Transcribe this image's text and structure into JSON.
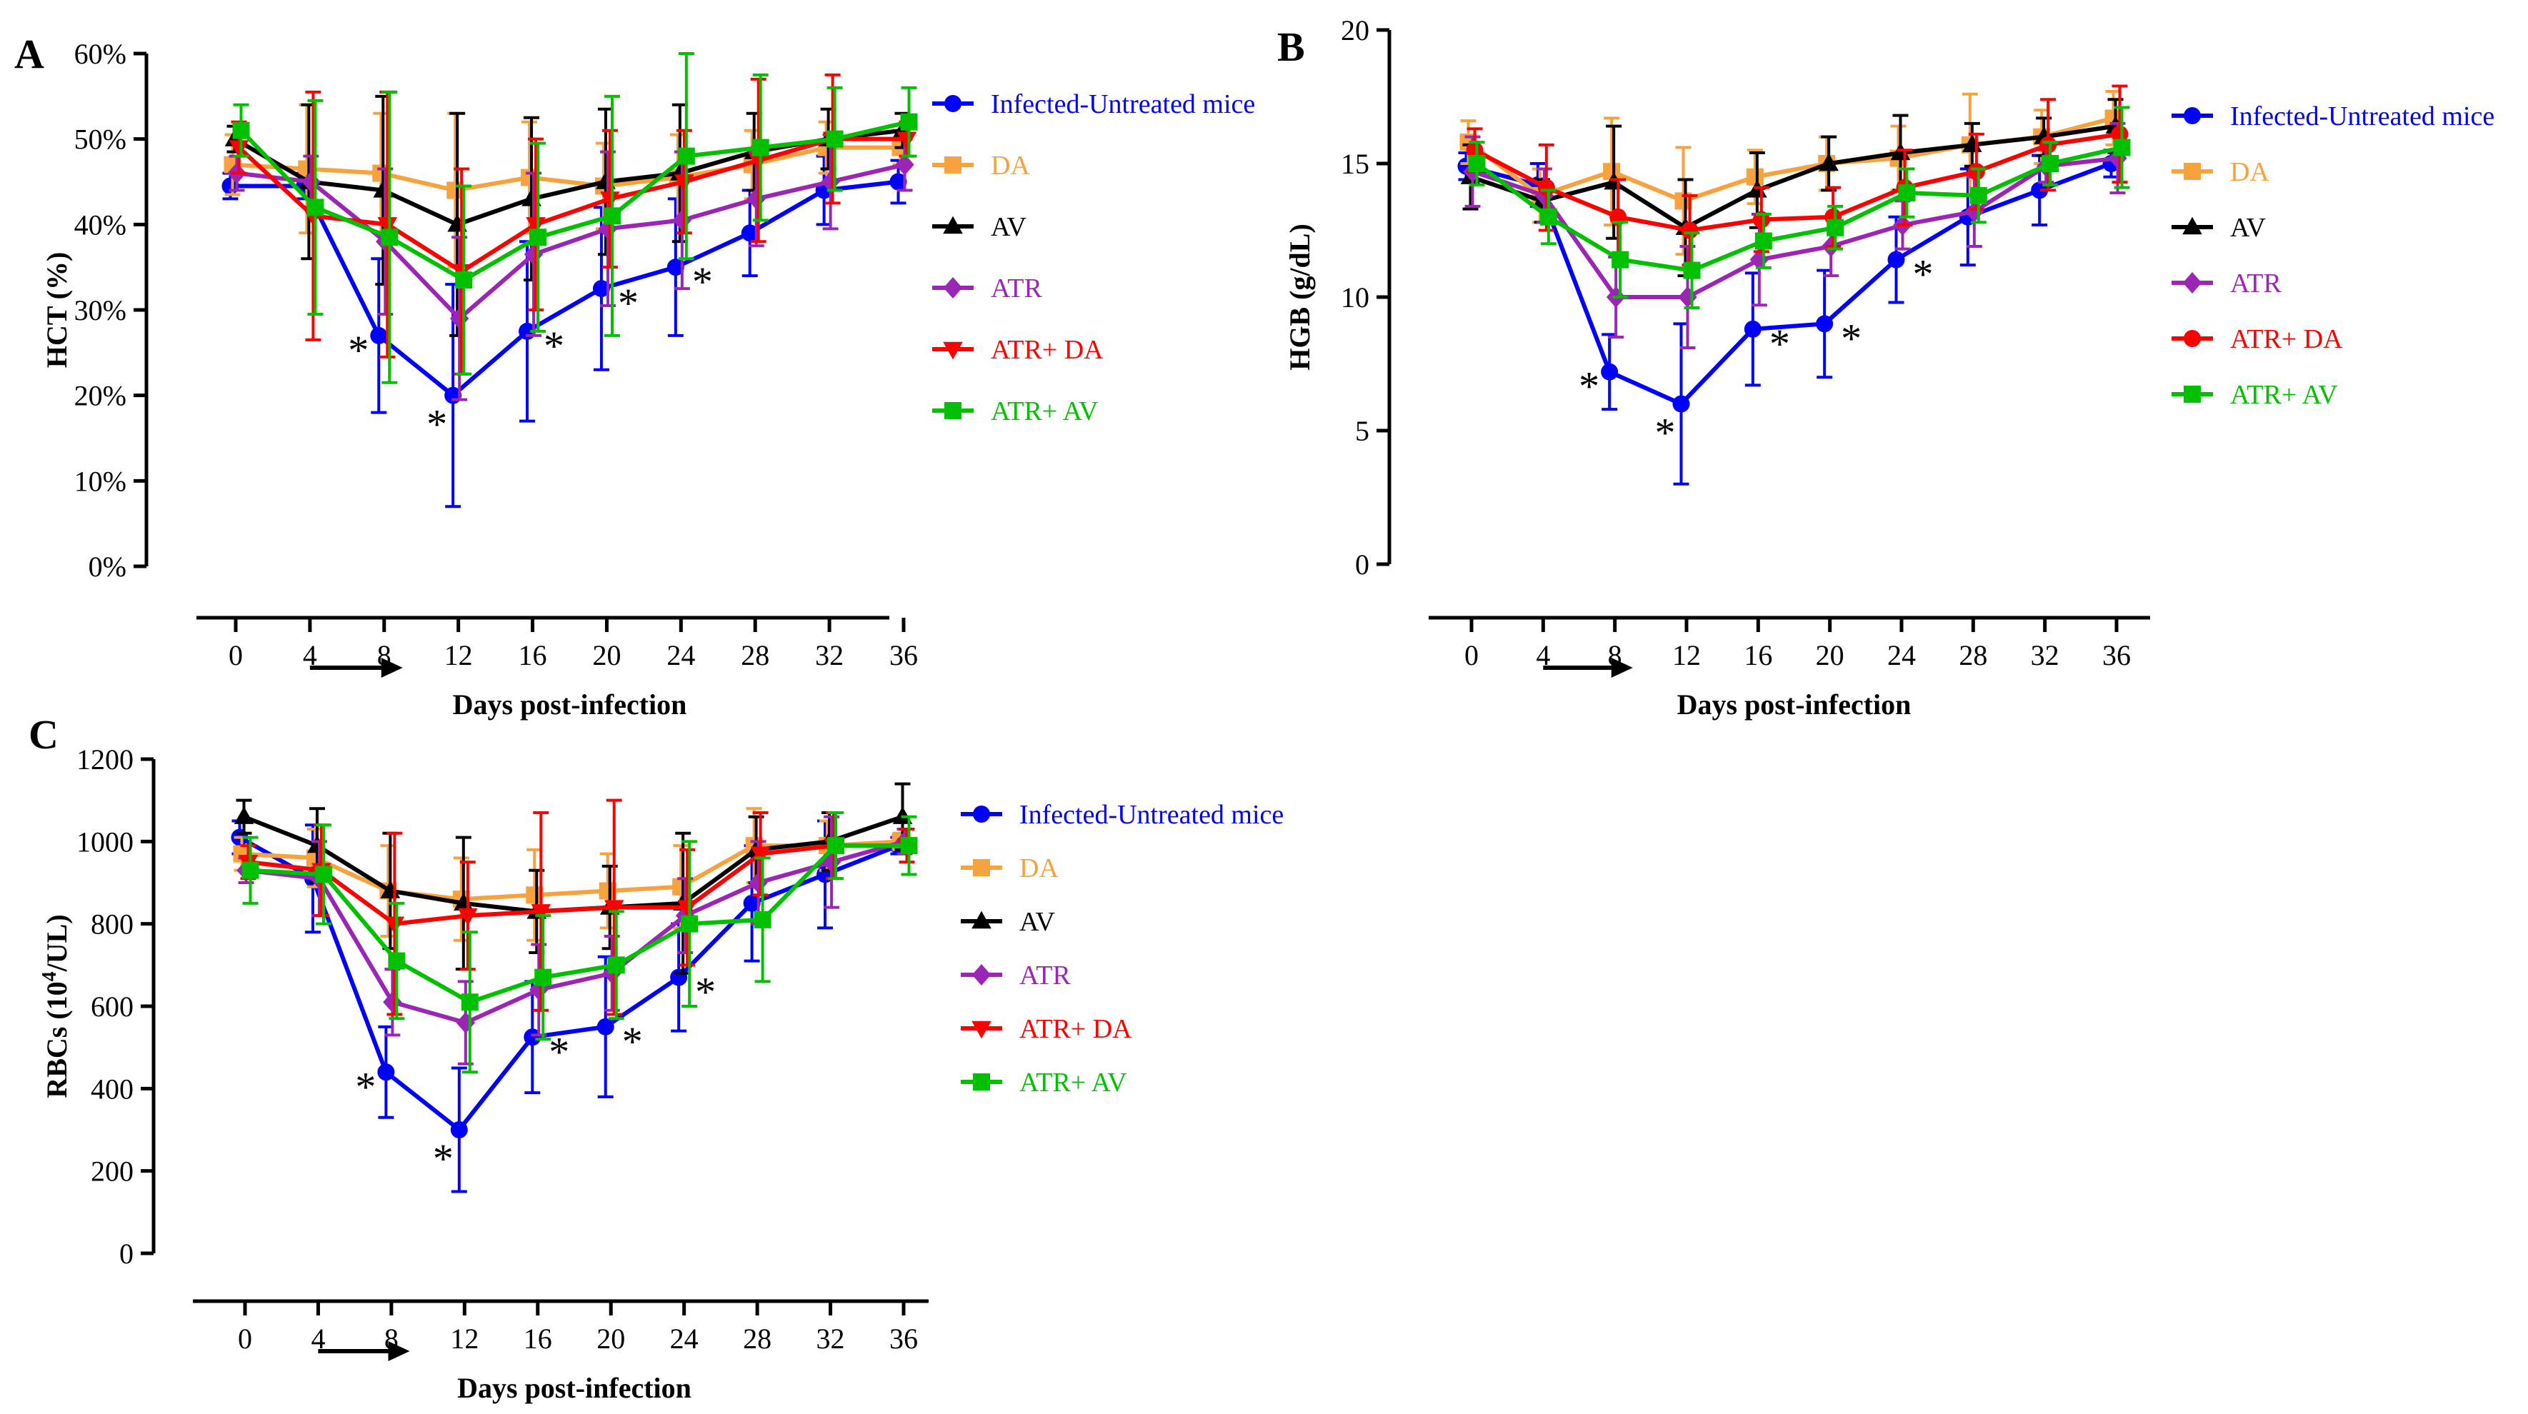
{
  "chart_data": [
    {
      "panel": "A",
      "type": "line",
      "ylabel": "HCT (%)",
      "xlabel": "Days post-infection",
      "ylim": [
        0,
        60
      ],
      "yticks": [
        "0%",
        "10%",
        "20%",
        "30%",
        "40%",
        "50%",
        "60%"
      ],
      "x": [
        0,
        4,
        8,
        12,
        16,
        20,
        24,
        28,
        32,
        36
      ],
      "series": [
        {
          "name": "Infected-Untreated mice",
          "color": "#0000ff",
          "marker": "circle",
          "values": [
            44.5,
            44.5,
            27,
            20,
            27.5,
            32.5,
            35,
            39,
            44,
            45
          ],
          "errors": [
            1.5,
            1.5,
            9,
            13,
            10.5,
            9.5,
            8,
            5,
            4,
            2.5
          ]
        },
        {
          "name": "DA",
          "color": "#f7a23c",
          "marker": "square",
          "values": [
            47,
            46.5,
            46,
            44,
            45.5,
            44.5,
            45.5,
            47,
            49,
            49
          ],
          "errors": [
            3.5,
            7.5,
            7,
            9,
            6.5,
            5,
            5,
            4,
            3,
            2
          ]
        },
        {
          "name": "AV",
          "color": "#000000",
          "marker": "triangle-up",
          "values": [
            50,
            45,
            44,
            40,
            43,
            45,
            46,
            48.5,
            50,
            51
          ],
          "errors": [
            1.5,
            9,
            11,
            13,
            9.5,
            8.5,
            8,
            4.5,
            3.5,
            2
          ]
        },
        {
          "name": "ATR",
          "color": "#9b26b6",
          "marker": "diamond",
          "values": [
            46,
            45,
            38,
            29,
            36.5,
            39.5,
            40.5,
            43,
            45,
            47
          ],
          "errors": [
            2,
            3,
            8.5,
            9.5,
            9.5,
            9,
            8,
            5.5,
            5.5,
            3
          ]
        },
        {
          "name": "ATR+ DA",
          "color": "#ff0000",
          "marker": "triangle-down",
          "values": [
            49,
            41,
            40,
            34.5,
            40,
            43,
            45,
            47.5,
            50,
            50
          ],
          "errors": [
            3,
            14.5,
            15.5,
            12,
            10,
            8,
            6,
            9.5,
            7.5,
            2
          ]
        },
        {
          "name": "ATR+ AV",
          "color": "#00c000",
          "marker": "square",
          "values": [
            51,
            42,
            38.5,
            33.5,
            38.5,
            41,
            48,
            49,
            50,
            52
          ],
          "errors": [
            3,
            12.5,
            17,
            11,
            11,
            14,
            12,
            8.5,
            6,
            4
          ]
        }
      ],
      "significance": [
        {
          "x": 8,
          "y": 27,
          "label": "*"
        },
        {
          "x": 12,
          "y": 20,
          "label": "*"
        },
        {
          "x": 16,
          "y": 27.5,
          "label": "*"
        },
        {
          "x": 20,
          "y": 32.5,
          "label": "*"
        },
        {
          "x": 24,
          "y": 35,
          "label": "*"
        }
      ],
      "treatment_period": [
        4,
        9
      ]
    },
    {
      "panel": "B",
      "type": "line",
      "ylabel": "HGB (g/dL)",
      "xlabel": "Days post-infection",
      "ylim": [
        0,
        20
      ],
      "yticks": [
        "0",
        "5",
        "10",
        "15",
        "20"
      ],
      "x": [
        0,
        4,
        8,
        12,
        16,
        20,
        24,
        28,
        32,
        36
      ],
      "series": [
        {
          "name": "Infected-Untreated mice",
          "color": "#0000ff",
          "marker": "circle",
          "values": [
            14.9,
            14.2,
            7.2,
            6,
            8.8,
            9,
            11.4,
            13,
            14,
            15
          ],
          "errors": [
            0.5,
            0.8,
            1.4,
            3,
            2.1,
            2,
            1.6,
            1.8,
            1.3,
            0.5
          ]
        },
        {
          "name": "DA",
          "color": "#f7a23c",
          "marker": "square",
          "values": [
            15.8,
            13.8,
            14.7,
            13.6,
            14.5,
            15,
            15.2,
            15.7,
            16,
            16.7
          ],
          "errors": [
            0.8,
            1,
            2,
            2,
            1,
            1,
            1.2,
            1.9,
            1,
            1
          ]
        },
        {
          "name": "AV",
          "color": "#000000",
          "marker": "triangle-up",
          "values": [
            14.5,
            13.6,
            14.3,
            12.6,
            14,
            15,
            15.4,
            15.7,
            16,
            16.4
          ],
          "errors": [
            1.2,
            0.8,
            2.1,
            1.8,
            1.4,
            1,
            1.4,
            0.8,
            0.7,
            1
          ]
        },
        {
          "name": "ATR",
          "color": "#9b26b6",
          "marker": "diamond",
          "values": [
            14.7,
            13.8,
            10,
            10,
            11.4,
            11.9,
            12.7,
            13.2,
            14.9,
            15.2
          ],
          "errors": [
            1.3,
            1,
            1.5,
            1.9,
            1.7,
            1.1,
            0.9,
            1.3,
            0.6,
            1.3
          ]
        },
        {
          "name": "ATR+ DA",
          "color": "#ff0000",
          "marker": "circle",
          "values": [
            15.5,
            14.1,
            13,
            12.5,
            12.9,
            13,
            14.1,
            14.7,
            15.7,
            16.1
          ],
          "errors": [
            0.8,
            1.6,
            1.4,
            1.3,
            1.2,
            1.1,
            1.4,
            1.4,
            1.7,
            1.8
          ]
        },
        {
          "name": "ATR+ AV",
          "color": "#00c000",
          "marker": "square",
          "values": [
            15,
            13,
            11.4,
            11,
            12.1,
            12.6,
            13.9,
            13.8,
            15,
            15.6
          ],
          "errors": [
            0.8,
            1,
            1.4,
            1.4,
            1,
            0.8,
            0.9,
            1,
            0.8,
            1.5
          ]
        }
      ],
      "significance": [
        {
          "x": 8,
          "y": 7.2,
          "label": "*"
        },
        {
          "x": 12,
          "y": 6,
          "label": "*"
        },
        {
          "x": 16,
          "y": 8.8,
          "label": "*"
        },
        {
          "x": 20,
          "y": 9,
          "label": "*"
        },
        {
          "x": 24,
          "y": 11.4,
          "label": "*"
        }
      ],
      "treatment_period": [
        4,
        9
      ]
    },
    {
      "panel": "C",
      "type": "line",
      "ylabel": "RBCs (10^4/UL)",
      "xlabel": "Days post-infection",
      "ylim": [
        0,
        1200
      ],
      "yticks": [
        "0",
        "200",
        "400",
        "600",
        "800",
        "1000",
        "1200"
      ],
      "x": [
        0,
        4,
        8,
        12,
        16,
        20,
        24,
        28,
        32,
        36
      ],
      "series": [
        {
          "name": "Infected-Untreated mice",
          "color": "#0000ff",
          "marker": "circle",
          "values": [
            1010,
            910,
            440,
            300,
            525,
            550,
            670,
            850,
            920,
            990
          ],
          "errors": [
            40,
            130,
            110,
            150,
            135,
            170,
            130,
            140,
            130,
            20
          ]
        },
        {
          "name": "DA",
          "color": "#f7a23c",
          "marker": "square",
          "values": [
            970,
            960,
            880,
            860,
            870,
            880,
            890,
            990,
            990,
            1000
          ],
          "errors": [
            40,
            70,
            110,
            100,
            110,
            90,
            100,
            90,
            60,
            20
          ]
        },
        {
          "name": "AV",
          "color": "#000000",
          "marker": "triangle-up",
          "values": [
            1060,
            990,
            880,
            850,
            830,
            840,
            850,
            980,
            1000,
            1060
          ],
          "errors": [
            40,
            90,
            140,
            160,
            100,
            100,
            170,
            80,
            70,
            80
          ]
        },
        {
          "name": "ATR",
          "color": "#9b26b6",
          "marker": "diamond",
          "values": [
            930,
            910,
            610,
            560,
            640,
            680,
            820,
            900,
            950,
            1000
          ],
          "errors": [
            30,
            90,
            80,
            100,
            110,
            90,
            90,
            100,
            110,
            30
          ]
        },
        {
          "name": "ATR+ DA",
          "color": "#ff0000",
          "marker": "triangle-down",
          "values": [
            950,
            930,
            800,
            820,
            830,
            840,
            840,
            970,
            990,
            990
          ],
          "errors": [
            40,
            110,
            220,
            130,
            240,
            260,
            140,
            100,
            80,
            40
          ]
        },
        {
          "name": "ATR+ AV",
          "color": "#00c000",
          "marker": "square",
          "values": [
            930,
            920,
            710,
            610,
            670,
            700,
            800,
            810,
            990,
            990
          ],
          "errors": [
            80,
            120,
            140,
            170,
            150,
            130,
            200,
            150,
            80,
            70
          ]
        }
      ],
      "significance": [
        {
          "x": 8,
          "y": 440,
          "label": "*"
        },
        {
          "x": 12,
          "y": 300,
          "label": "*"
        },
        {
          "x": 16,
          "y": 525,
          "label": "*"
        },
        {
          "x": 20,
          "y": 550,
          "label": "*"
        },
        {
          "x": 24,
          "y": 670,
          "label": "*"
        }
      ],
      "treatment_period": [
        4,
        9
      ]
    }
  ]
}
